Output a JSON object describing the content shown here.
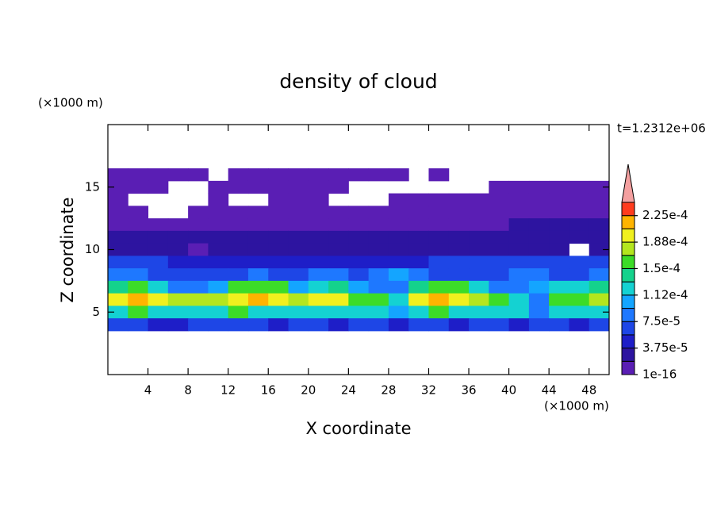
{
  "chart_data": {
    "type": "contour",
    "title": "density of cloud",
    "xlabel": "X coordinate",
    "ylabel": "Z coordinate",
    "xunit": "(×1000 m)",
    "yunit": "(×1000 m)",
    "annotation": "t=1.2312e+06",
    "xlim": [
      0,
      50
    ],
    "ylim": [
      0,
      20
    ],
    "xticks": [
      4,
      8,
      12,
      16,
      20,
      24,
      28,
      32,
      36,
      40,
      44,
      48
    ],
    "yticks": [
      5,
      10,
      15
    ],
    "x": [
      1,
      3,
      5,
      7,
      9,
      11,
      13,
      15,
      17,
      19,
      21,
      23,
      25,
      27,
      29,
      31,
      33,
      35,
      37,
      39,
      41,
      43,
      45,
      47,
      49
    ],
    "z": [
      16,
      15,
      14,
      13,
      12,
      11,
      10,
      9,
      8,
      7,
      6,
      5,
      4
    ],
    "values": [
      [
        1e-05,
        1e-05,
        1e-05,
        1e-05,
        1e-05,
        null,
        1e-05,
        1e-05,
        1e-05,
        1e-05,
        1e-05,
        1e-05,
        1e-05,
        1e-05,
        1e-05,
        null,
        1e-05,
        null,
        null,
        null,
        null,
        null,
        null,
        null,
        null
      ],
      [
        1e-05,
        1e-05,
        1e-05,
        null,
        null,
        1e-05,
        1e-05,
        1e-05,
        1e-05,
        1e-05,
        1e-05,
        1e-05,
        null,
        null,
        null,
        null,
        null,
        null,
        null,
        1e-05,
        1e-05,
        1e-05,
        1e-05,
        1e-05,
        1e-05
      ],
      [
        1e-05,
        null,
        null,
        null,
        null,
        1e-05,
        null,
        null,
        1e-05,
        1e-05,
        1e-05,
        null,
        null,
        null,
        1e-05,
        1e-05,
        1e-05,
        1e-05,
        1e-05,
        1e-05,
        1e-05,
        1e-05,
        1e-05,
        1e-05,
        1e-05
      ],
      [
        1e-05,
        1e-05,
        null,
        null,
        1e-05,
        1e-05,
        1e-05,
        1e-05,
        1e-05,
        1e-05,
        1e-05,
        1e-05,
        1e-05,
        1e-05,
        1e-05,
        1e-05,
        1e-05,
        1e-05,
        1e-05,
        1e-05,
        1e-05,
        1e-05,
        1e-05,
        1e-05,
        1e-05
      ],
      [
        1.5e-05,
        1.5e-05,
        1.5e-05,
        1.5e-05,
        1.5e-05,
        1.5e-05,
        1.5e-05,
        1.5e-05,
        1.5e-05,
        1.5e-05,
        1.5e-05,
        1.5e-05,
        1.5e-05,
        1.5e-05,
        1.5e-05,
        1.5e-05,
        1.5e-05,
        1.5e-05,
        1.5e-05,
        1.5e-05,
        2.2e-05,
        2.2e-05,
        2.2e-05,
        2.2e-05,
        2.2e-05
      ],
      [
        3e-05,
        3e-05,
        2.5e-05,
        2.5e-05,
        2.5e-05,
        2.5e-05,
        2.5e-05,
        2.5e-05,
        2.5e-05,
        2.5e-05,
        2.5e-05,
        2.5e-05,
        2.5e-05,
        2.5e-05,
        2.5e-05,
        2.5e-05,
        2.5e-05,
        2.5e-05,
        2.5e-05,
        2.5e-05,
        2.5e-05,
        2.5e-05,
        2.5e-05,
        2.5e-05,
        2.5e-05
      ],
      [
        2.8e-05,
        2.8e-05,
        2.8e-05,
        2.8e-05,
        1.5e-05,
        2.8e-05,
        2.8e-05,
        2.8e-05,
        2.8e-05,
        2.8e-05,
        2.8e-05,
        2.8e-05,
        2.8e-05,
        2.8e-05,
        2.8e-05,
        2.8e-05,
        2.8e-05,
        2.8e-05,
        2.8e-05,
        2.8e-05,
        2.8e-05,
        2.8e-05,
        2.8e-05,
        null,
        2.8e-05
      ],
      [
        6e-05,
        6e-05,
        6e-05,
        4.5e-05,
        4.5e-05,
        4.5e-05,
        4.5e-05,
        4.5e-05,
        4.5e-05,
        4.5e-05,
        4.5e-05,
        4.5e-05,
        4.5e-05,
        4.5e-05,
        4.5e-05,
        4.5e-05,
        6e-05,
        6e-05,
        6e-05,
        6e-05,
        6e-05,
        6e-05,
        6e-05,
        6e-05,
        6e-05
      ],
      [
        9e-05,
        9e-05,
        7e-05,
        7e-05,
        7e-05,
        7e-05,
        7e-05,
        9e-05,
        7e-05,
        7e-05,
        9e-05,
        9e-05,
        7e-05,
        9e-05,
        0.0001,
        9e-05,
        7e-05,
        7e-05,
        7e-05,
        7e-05,
        9e-05,
        9e-05,
        7e-05,
        7e-05,
        9e-05
      ],
      [
        0.00014,
        0.00015,
        0.00013,
        9e-05,
        8e-05,
        0.00011,
        0.00015,
        0.00016,
        0.00015,
        0.0001,
        0.00013,
        0.00014,
        0.0001,
        9e-05,
        8e-05,
        0.00014,
        0.00016,
        0.00015,
        0.00012,
        9e-05,
        8e-05,
        0.0001,
        0.00012,
        0.00013,
        0.00014
      ],
      [
        0.0002,
        0.00021,
        0.00019,
        0.00018,
        0.00017,
        0.00018,
        0.0002,
        0.00021,
        0.00019,
        0.00017,
        0.00019,
        0.00019,
        0.00016,
        0.00015,
        0.00012,
        0.0002,
        0.00021,
        0.00019,
        0.00017,
        0.00015,
        0.00013,
        9e-05,
        0.00015,
        0.00016,
        0.00017
      ],
      [
        0.00013,
        0.00015,
        0.00012,
        0.00012,
        0.00012,
        0.00012,
        0.00015,
        0.00013,
        0.00012,
        0.00012,
        0.00013,
        0.00012,
        0.00012,
        0.00012,
        0.0001,
        0.00013,
        0.00015,
        0.00012,
        0.00012,
        0.00012,
        0.00012,
        8e-05,
        0.00012,
        0.00013,
        0.00012
      ],
      [
        6e-05,
        6e-05,
        4e-05,
        4e-05,
        7e-05,
        7e-05,
        6e-05,
        6e-05,
        4e-05,
        6e-05,
        6e-05,
        4e-05,
        6e-05,
        6e-05,
        4e-05,
        6e-05,
        6e-05,
        4e-05,
        6e-05,
        6e-05,
        4e-05,
        6e-05,
        6e-05,
        4e-05,
        6e-05
      ]
    ],
    "colorbar": {
      "levels": [
        1e-16,
        1.875e-05,
        3.75e-05,
        5.625e-05,
        7.5e-05,
        9.375e-05,
        0.0001125,
        0.00013125,
        0.00015,
        0.00016875,
        0.0001875,
        0.00020625,
        0.000225,
        0.00024375
      ],
      "colors": [
        "#5a1eb4",
        "#2d14a0",
        "#1e1ec8",
        "#1e46e6",
        "#1e78ff",
        "#14a5ff",
        "#14d2d2",
        "#14d28c",
        "#3cdc28",
        "#b4e61e",
        "#f0f01e",
        "#ffb400",
        "#ff3c1e"
      ],
      "extend_color": "#f4a0a0",
      "ticks": [
        1e-16,
        {
          "value": 3.75e-05,
          "label": "3.75e-5"
        },
        {
          "value": 7.5e-05,
          "label": "7.5e-5"
        },
        {
          "value": 0.0001125,
          "label": "1.12e-4"
        },
        {
          "value": 0.00015,
          "label": "1.5e-4"
        },
        {
          "value": 0.0001875,
          "label": "1.88e-4"
        },
        {
          "value": 0.000225,
          "label": "2.25e-4"
        }
      ]
    }
  }
}
